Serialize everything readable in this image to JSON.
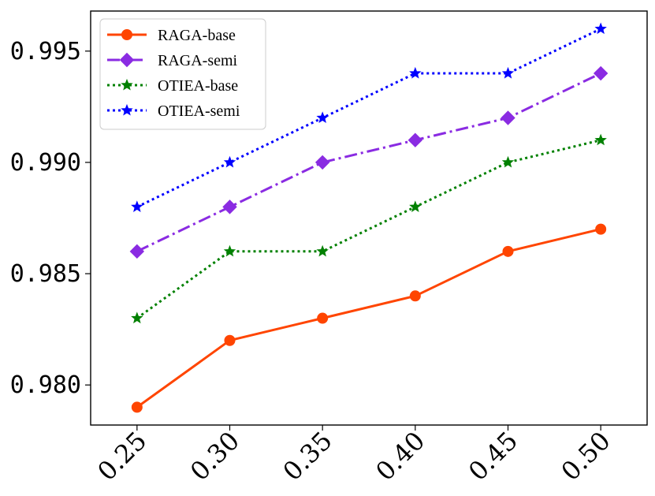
{
  "chart_data": {
    "type": "line",
    "title": "",
    "xlabel": "",
    "ylabel": "",
    "x": [
      0.25,
      0.3,
      0.35,
      0.4,
      0.45,
      0.5
    ],
    "x_tick_labels": [
      "0.25",
      "0.30",
      "0.35",
      "0.40",
      "0.45",
      "0.50"
    ],
    "y_ticks": [
      0.98,
      0.985,
      0.99,
      0.995
    ],
    "y_tick_labels": [
      "0.980",
      "0.985",
      "0.990",
      "0.995"
    ],
    "xlim": [
      0.225,
      0.525
    ],
    "ylim": [
      0.9782,
      0.9968
    ],
    "grid": false,
    "legend_position": "top-left",
    "series": [
      {
        "name": "RAGA-base",
        "values": [
          0.979,
          0.982,
          0.983,
          0.984,
          0.986,
          0.987
        ],
        "color": "#ff4500",
        "line_style": "solid",
        "marker": "circle"
      },
      {
        "name": "RAGA-semi",
        "values": [
          0.986,
          0.988,
          0.99,
          0.991,
          0.992,
          0.994
        ],
        "color": "#8a2be2",
        "line_style": "dashdot",
        "marker": "diamond"
      },
      {
        "name": "OTIEA-base",
        "values": [
          0.983,
          0.986,
          0.986,
          0.988,
          0.99,
          0.991
        ],
        "color": "#008000",
        "line_style": "dotted",
        "marker": "star"
      },
      {
        "name": "OTIEA-semi",
        "values": [
          0.988,
          0.99,
          0.992,
          0.994,
          0.994,
          0.996
        ],
        "color": "#0000ff",
        "line_style": "dotted",
        "marker": "star"
      }
    ]
  }
}
